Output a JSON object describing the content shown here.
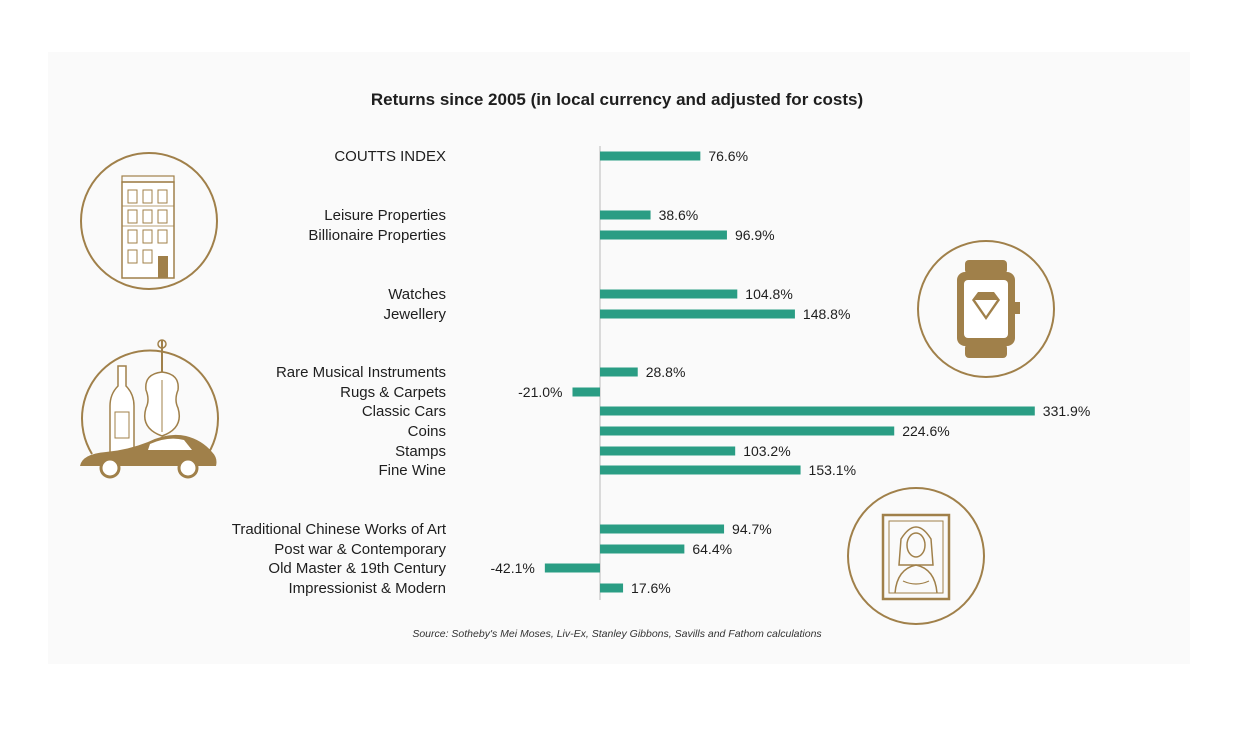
{
  "title": "Returns since 2005 (in local currency and adjusted for costs)",
  "source": "Source: Sotheby's Mei Moses, Liv-Ex, Stanley Gibbons, Savills and Fathom calculations",
  "colors": {
    "bar": "#2a9d84",
    "gold": "#a0804a",
    "axis": "#cfcfcf"
  },
  "icons": [
    "townhouse-icon",
    "watch-icon",
    "wine-violin-car-icon",
    "mona-lisa-icon"
  ],
  "chart_data": {
    "type": "bar",
    "orientation": "horizontal",
    "title": "Returns since 2005 (in local currency and adjusted for costs)",
    "xlim": [
      -42.1,
      331.9
    ],
    "grid": false,
    "categories": [
      "COUTTS INDEX",
      "Leisure Properties",
      "Billionaire Properties",
      "Watches",
      "Jewellery",
      "Rare Musical Instruments",
      "Rugs & Carpets",
      "Classic Cars",
      "Coins",
      "Stamps",
      "Fine Wine",
      "Traditional Chinese Works of Art",
      "Post war & Contemporary",
      "Old Master & 19th Century",
      "Impressionist & Modern"
    ],
    "values": [
      76.6,
      38.6,
      96.9,
      104.8,
      148.8,
      28.8,
      -21.0,
      331.9,
      224.6,
      103.2,
      153.1,
      94.7,
      64.4,
      -42.1,
      17.6
    ],
    "value_labels": [
      "76.6%",
      "38.6%",
      "96.9%",
      "104.8%",
      "148.8%",
      "28.8%",
      "-21.0%",
      "331.9%",
      "224.6%",
      "103.2%",
      "153.1%",
      "94.7%",
      "64.4%",
      "-42.1%",
      "17.6%"
    ]
  }
}
